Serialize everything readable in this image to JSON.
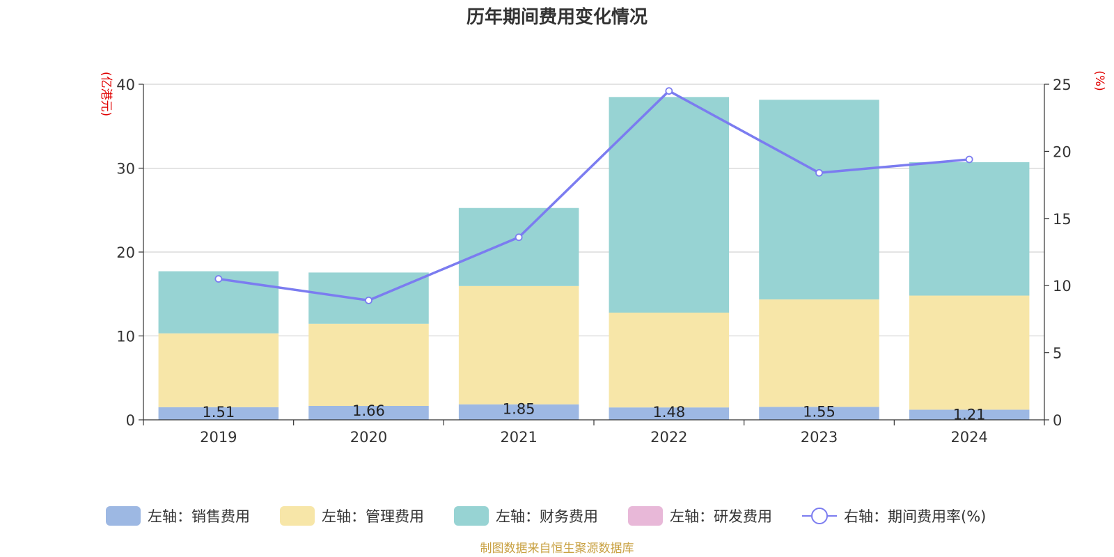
{
  "title": "历年期间费用变化情况",
  "source": "制图数据来自恒生聚源数据库",
  "colors": {
    "sales": "#9db8e3",
    "admin": "#f7e6a8",
    "finance": "#97d3d3",
    "rd": "#e8b8d8",
    "rate": "#7b7cf0"
  },
  "chart_data": {
    "type": "bar",
    "stacked": true,
    "categories": [
      "2019",
      "2020",
      "2021",
      "2022",
      "2023",
      "2024"
    ],
    "left_axis": {
      "unit": "(亿港元)",
      "ylim": [
        0,
        40
      ],
      "ticks": [
        0,
        10,
        20,
        30,
        40
      ]
    },
    "right_axis": {
      "unit": "(%)",
      "ylim": [
        0,
        25
      ],
      "ticks": [
        0,
        5,
        10,
        15,
        20,
        25
      ]
    },
    "series": [
      {
        "key": "sales",
        "name": "左轴：销售费用",
        "axis": "left",
        "type": "bar",
        "values": [
          1.51,
          1.66,
          1.85,
          1.48,
          1.55,
          1.21
        ],
        "labels": [
          "1.51",
          "1.66",
          "1.85",
          "1.48",
          "1.55",
          "1.21"
        ]
      },
      {
        "key": "admin",
        "name": "左轴：管理费用",
        "axis": "left",
        "type": "bar",
        "values": [
          8.8,
          9.8,
          14.1,
          11.3,
          12.8,
          13.6
        ]
      },
      {
        "key": "finance",
        "name": "左轴：财务费用",
        "axis": "left",
        "type": "bar",
        "values": [
          7.4,
          6.1,
          9.3,
          25.7,
          23.8,
          15.9
        ]
      },
      {
        "key": "rd",
        "name": "左轴：研发费用",
        "axis": "left",
        "type": "bar",
        "values": [
          0,
          0,
          0,
          0,
          0,
          0
        ]
      },
      {
        "key": "rate",
        "name": "右轴：期间费用率(%)",
        "axis": "right",
        "type": "line",
        "values": [
          10.5,
          8.9,
          13.6,
          24.5,
          18.4,
          19.4
        ]
      }
    ],
    "grid": true,
    "legend_position": "bottom"
  }
}
